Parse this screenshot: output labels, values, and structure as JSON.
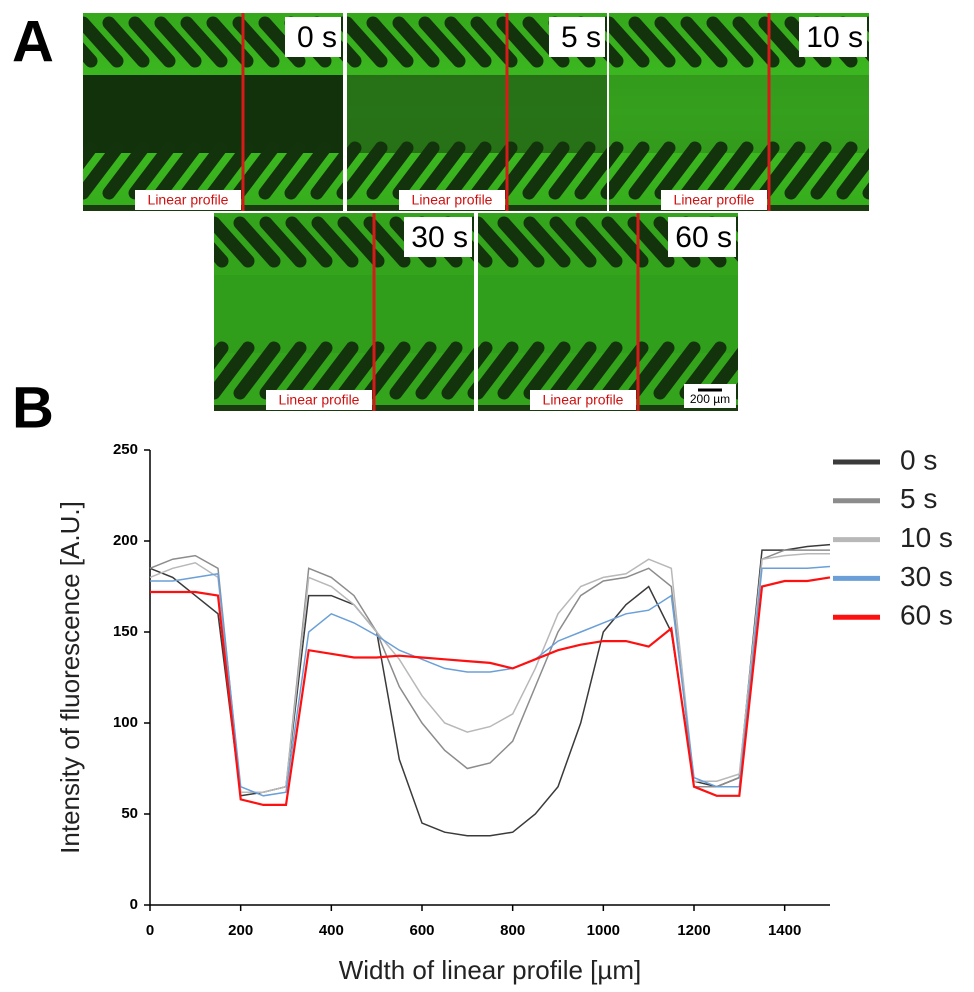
{
  "panels": {
    "A": {
      "label": "A",
      "images": [
        {
          "time": "0 s",
          "profile_label": "Linear profile"
        },
        {
          "time": "5 s",
          "profile_label": "Linear profile"
        },
        {
          "time": "10 s",
          "profile_label": "Linear profile"
        },
        {
          "time": "30 s",
          "profile_label": "Linear profile"
        },
        {
          "time": "60 s",
          "profile_label": "Linear profile"
        }
      ],
      "scale_bar": "200 µm"
    },
    "B": {
      "label": "B"
    }
  },
  "chart_data": {
    "type": "line",
    "xlabel": "Width of linear profile [µm]",
    "ylabel": "Intensity of fluorescence [A.U.]",
    "x": [
      0,
      50,
      100,
      150,
      200,
      250,
      300,
      350,
      400,
      450,
      500,
      550,
      600,
      650,
      700,
      750,
      800,
      850,
      900,
      950,
      1000,
      1050,
      1100,
      1150,
      1200,
      1250,
      1300,
      1350,
      1400,
      1450,
      1500
    ],
    "xlim": [
      0,
      1500
    ],
    "xticks": [
      0,
      200,
      400,
      600,
      800,
      1000,
      1200,
      1400
    ],
    "ylim": [
      0,
      250
    ],
    "yticks": [
      0,
      50,
      100,
      150,
      200,
      250
    ],
    "grid": false,
    "legend": "right",
    "series": [
      {
        "name": "0 s",
        "color": "#3a3a3a",
        "values": [
          185,
          180,
          170,
          160,
          60,
          62,
          65,
          170,
          170,
          165,
          150,
          80,
          45,
          40,
          38,
          38,
          40,
          50,
          65,
          100,
          150,
          165,
          175,
          150,
          68,
          65,
          70,
          195,
          195,
          197,
          198
        ]
      },
      {
        "name": "5 s",
        "color": "#8c8c8c",
        "values": [
          185,
          190,
          192,
          185,
          62,
          62,
          65,
          185,
          180,
          170,
          150,
          120,
          100,
          85,
          75,
          78,
          90,
          120,
          150,
          170,
          178,
          180,
          185,
          175,
          65,
          65,
          70,
          190,
          195,
          195,
          195
        ]
      },
      {
        "name": "10 s",
        "color": "#b8b8b8",
        "values": [
          180,
          185,
          188,
          180,
          62,
          62,
          65,
          180,
          175,
          165,
          150,
          135,
          115,
          100,
          95,
          98,
          105,
          130,
          160,
          175,
          180,
          182,
          190,
          185,
          68,
          68,
          72,
          190,
          192,
          193,
          193
        ]
      },
      {
        "name": "30 s",
        "color": "#6a9fd8",
        "values": [
          178,
          178,
          180,
          182,
          65,
          60,
          62,
          150,
          160,
          155,
          148,
          140,
          135,
          130,
          128,
          128,
          130,
          135,
          145,
          150,
          155,
          160,
          162,
          170,
          70,
          65,
          65,
          185,
          185,
          185,
          186
        ]
      },
      {
        "name": "60 s",
        "color": "#ff1010",
        "values": [
          172,
          172,
          172,
          170,
          58,
          55,
          55,
          140,
          138,
          136,
          136,
          137,
          136,
          135,
          134,
          133,
          130,
          135,
          140,
          143,
          145,
          145,
          142,
          152,
          65,
          60,
          60,
          175,
          178,
          178,
          180
        ]
      }
    ]
  }
}
